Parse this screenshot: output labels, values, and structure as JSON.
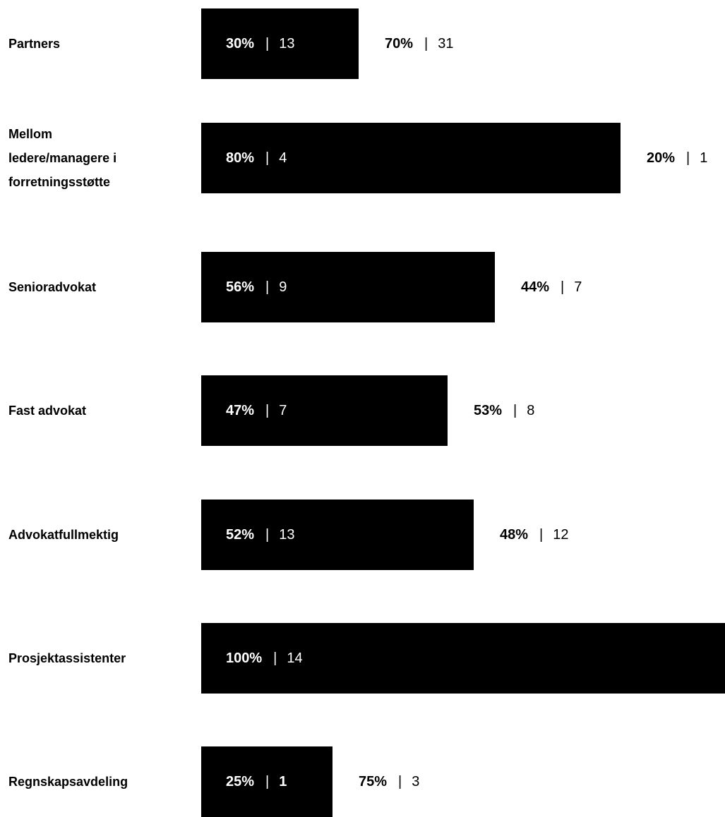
{
  "chart_data": {
    "type": "bar",
    "orientation": "horizontal",
    "stacked": true,
    "separator": "|",
    "colors": {
      "bar": "#000000",
      "bar_text": "#ffffff",
      "rest_text": "#000000",
      "background": "#ffffff"
    },
    "categories": [
      "Partners",
      "Mellom ledere/managere i forretningsstøtte",
      "Senioradvokat",
      "Fast advokat",
      "Advokatfullmektig",
      "Prosjektassistenter",
      "Regnskapsavdeling"
    ],
    "category_lines": [
      [
        "Partners"
      ],
      [
        "Mellom",
        "ledere/managere i",
        "forretningsstøtte"
      ],
      [
        "Senioradvokat"
      ],
      [
        "Fast advokat"
      ],
      [
        "Advokatfullmektig"
      ],
      [
        "Prosjektassistenter"
      ],
      [
        "Regnskapsavdeling"
      ]
    ],
    "series": [
      {
        "values": [
          30,
          80,
          56,
          47,
          52,
          100,
          25
        ],
        "labels": [
          "30%",
          "80%",
          "56%",
          "47%",
          "52%",
          "100%",
          "25%"
        ],
        "counts": [
          "13",
          "4",
          "9",
          "7",
          "13",
          "14",
          "1"
        ]
      },
      {
        "values": [
          70,
          20,
          44,
          53,
          48,
          0,
          75
        ],
        "labels": [
          "70%",
          "20%",
          "44%",
          "53%",
          "48%",
          "",
          "75%"
        ],
        "counts": [
          "31",
          "1",
          "7",
          "8",
          "12",
          "",
          "3"
        ]
      }
    ],
    "xlim": [
      0,
      100
    ],
    "grid": false,
    "title": "",
    "xlabel": "",
    "ylabel": ""
  }
}
